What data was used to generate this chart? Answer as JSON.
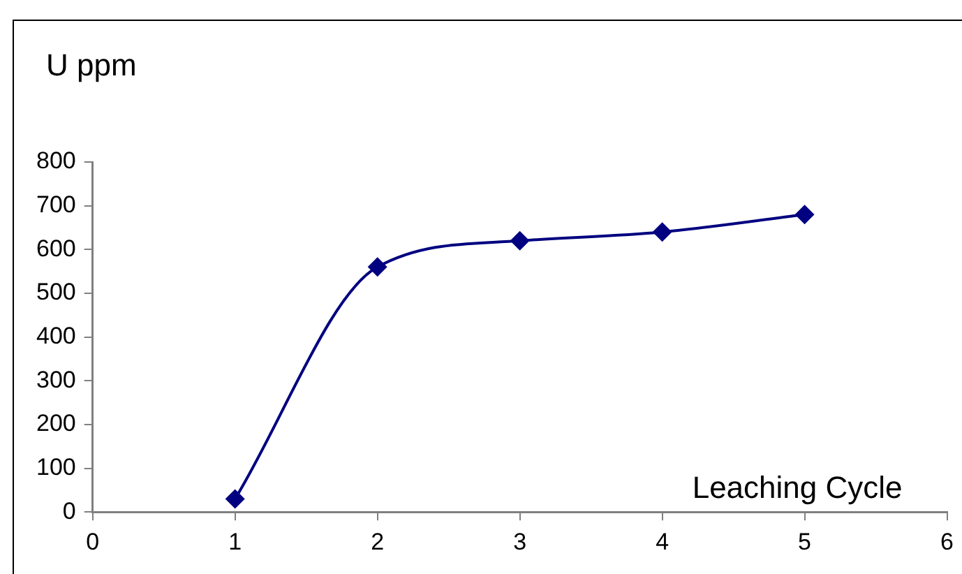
{
  "chart_data": {
    "type": "line",
    "xlabel": "Leaching Cycle",
    "ylabel": "U ppm",
    "x": [
      1,
      2,
      3,
      4,
      5
    ],
    "series": [
      {
        "color": "#000080",
        "values": [
          30,
          560,
          620,
          640,
          680
        ]
      }
    ],
    "xlim": [
      0,
      6
    ],
    "xticks": [
      0,
      1,
      2,
      3,
      4,
      5,
      6
    ],
    "ylim": [
      0,
      800
    ],
    "yticks": [
      0,
      100,
      200,
      300,
      400,
      500,
      600,
      700,
      800
    ],
    "grid": false,
    "legend": false,
    "marker": "diamond",
    "line_style": "solid"
  }
}
